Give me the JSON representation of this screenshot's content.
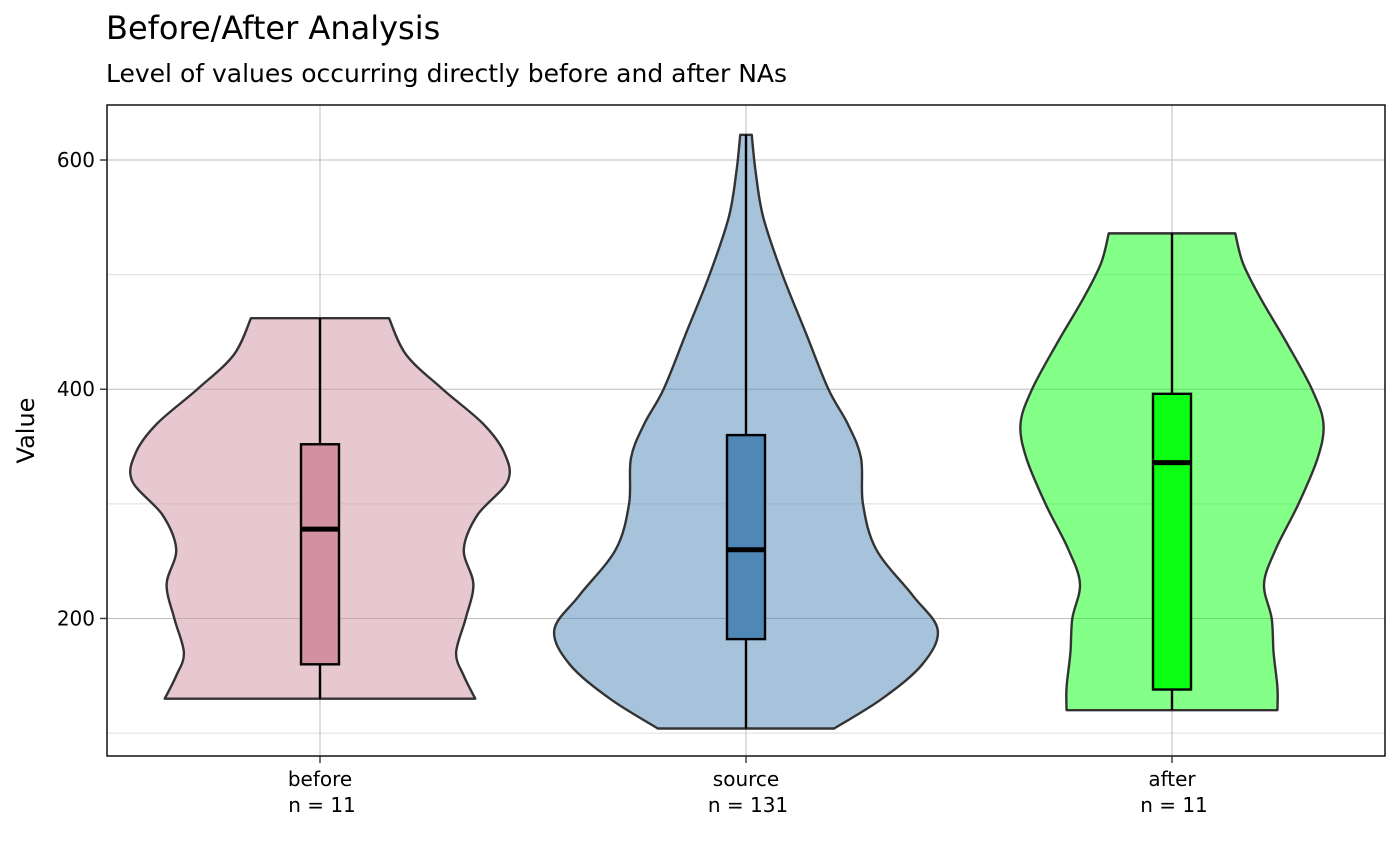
{
  "chart_data": {
    "type": "violin",
    "title": "Before/After Analysis",
    "subtitle": "Level of values occurring directly before and after NAs",
    "ylabel": "Value",
    "xlabel": "",
    "ylim": [
      80,
      648
    ],
    "yticks": [
      200,
      400,
      600
    ],
    "grid": true,
    "legend": "none",
    "categories": [
      {
        "name": "before",
        "n_label": "n = 11",
        "fill": "#d291a1",
        "min": 130,
        "q1": 160,
        "median": 278,
        "q3": 352,
        "max": 462,
        "density": [
          [
            130,
            0.81
          ],
          [
            150,
            0.75
          ],
          [
            170,
            0.71
          ],
          [
            200,
            0.76
          ],
          [
            230,
            0.8
          ],
          [
            260,
            0.75
          ],
          [
            290,
            0.82
          ],
          [
            320,
            0.98
          ],
          [
            345,
            0.96
          ],
          [
            370,
            0.85
          ],
          [
            400,
            0.64
          ],
          [
            430,
            0.45
          ],
          [
            462,
            0.36
          ]
        ]
      },
      {
        "name": "source",
        "n_label": "n = 131",
        "fill": "#4f87b7",
        "min": 104,
        "q1": 182,
        "median": 260,
        "q3": 360,
        "max": 622,
        "density": [
          [
            104,
            0.46
          ],
          [
            130,
            0.71
          ],
          [
            160,
            0.92
          ],
          [
            190,
            1.0
          ],
          [
            220,
            0.87
          ],
          [
            260,
            0.68
          ],
          [
            300,
            0.61
          ],
          [
            340,
            0.6
          ],
          [
            370,
            0.53
          ],
          [
            400,
            0.43
          ],
          [
            450,
            0.31
          ],
          [
            500,
            0.19
          ],
          [
            550,
            0.09
          ],
          [
            590,
            0.05
          ],
          [
            622,
            0.03
          ]
        ]
      },
      {
        "name": "after",
        "n_label": "n = 11",
        "fill": "#0aff12",
        "min": 120,
        "q1": 138,
        "median": 336,
        "q3": 396,
        "max": 536,
        "density": [
          [
            120,
            0.55
          ],
          [
            140,
            0.55
          ],
          [
            170,
            0.53
          ],
          [
            200,
            0.52
          ],
          [
            230,
            0.48
          ],
          [
            260,
            0.54
          ],
          [
            300,
            0.66
          ],
          [
            340,
            0.76
          ],
          [
            370,
            0.79
          ],
          [
            400,
            0.73
          ],
          [
            440,
            0.6
          ],
          [
            480,
            0.46
          ],
          [
            510,
            0.37
          ],
          [
            536,
            0.33
          ]
        ]
      }
    ]
  }
}
